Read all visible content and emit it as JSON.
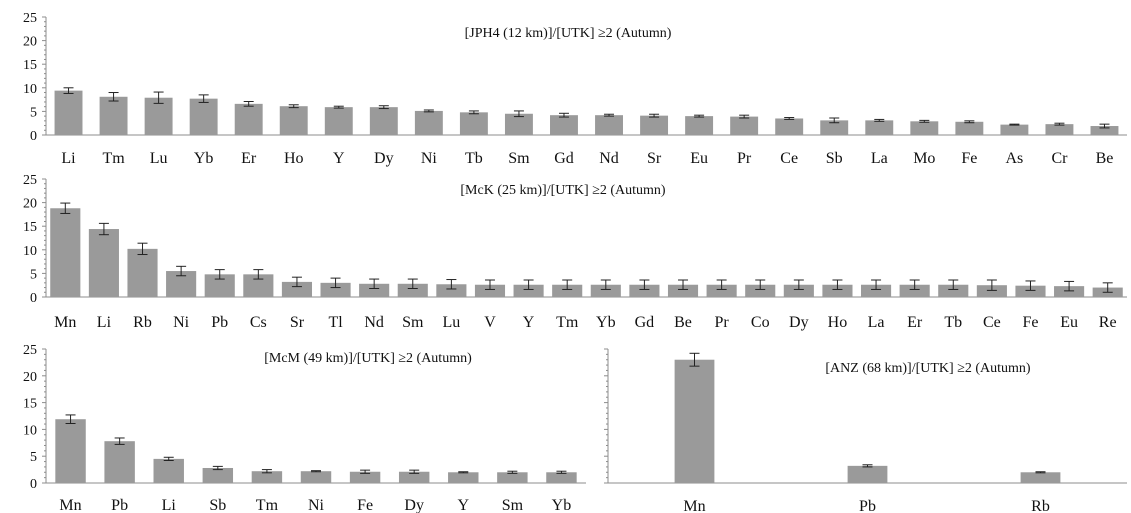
{
  "chart_data": [
    {
      "type": "bar",
      "title": "[JPH4 (12 km)]/[UTK] ≥2 (Autumn)",
      "ylim": [
        0,
        25
      ],
      "yticks": [
        0,
        5,
        10,
        15,
        20,
        25
      ],
      "grid": false,
      "categories": [
        "Li",
        "Tm",
        "Lu",
        "Yb",
        "Er",
        "Ho",
        "Y",
        "Dy",
        "Ni",
        "Tb",
        "Sm",
        "Gd",
        "Nd",
        "Sr",
        "Eu",
        "Pr",
        "Ce",
        "Sb",
        "La",
        "Mo",
        "Fe",
        "As",
        "Cr",
        "Be"
      ],
      "values": [
        9.4,
        8.1,
        7.9,
        7.7,
        6.6,
        6.1,
        5.9,
        5.9,
        5.1,
        4.8,
        4.5,
        4.2,
        4.2,
        4.1,
        4.0,
        3.9,
        3.5,
        3.1,
        3.1,
        2.9,
        2.8,
        2.2,
        2.3,
        1.9
      ],
      "errors": [
        0.6,
        0.9,
        1.2,
        0.8,
        0.5,
        0.3,
        0.2,
        0.3,
        0.2,
        0.3,
        0.6,
        0.4,
        0.2,
        0.3,
        0.2,
        0.3,
        0.2,
        0.5,
        0.2,
        0.2,
        0.2,
        0.1,
        0.2,
        0.4
      ]
    },
    {
      "type": "bar",
      "title": "[McK (25 km)]/[UTK] ≥2 (Autumn)",
      "ylim": [
        0,
        25
      ],
      "yticks": [
        0,
        5,
        10,
        15,
        20,
        25
      ],
      "grid": false,
      "categories": [
        "Mn",
        "Li",
        "Rb",
        "Ni",
        "Pb",
        "Cs",
        "Sr",
        "Tl",
        "Nd",
        "Sm",
        "Lu",
        "V",
        "Y",
        "Tm",
        "Yb",
        "Gd",
        "Be",
        "Pr",
        "Co",
        "Dy",
        "Ho",
        "La",
        "Er",
        "Tb",
        "Ce",
        "Fe",
        "Eu",
        "Re"
      ],
      "values": [
        18.8,
        14.4,
        10.2,
        5.5,
        4.8,
        4.8,
        3.2,
        3.0,
        2.8,
        2.8,
        2.7,
        2.6,
        2.6,
        2.6,
        2.6,
        2.6,
        2.6,
        2.6,
        2.6,
        2.6,
        2.6,
        2.6,
        2.6,
        2.6,
        2.5,
        2.4,
        2.3,
        2.0
      ],
      "errors": [
        1.1,
        1.2,
        1.2,
        1.0,
        1.0,
        1.0,
        1.0,
        1.0,
        1.0,
        1.0,
        1.0,
        1.0,
        1.0,
        1.0,
        1.0,
        1.0,
        1.0,
        1.0,
        1.0,
        1.0,
        1.0,
        1.0,
        1.0,
        1.0,
        1.1,
        1.0,
        1.0,
        1.0
      ]
    },
    {
      "type": "bar",
      "title": "[McM (49 km)]/[UTK] ≥2 (Autumn)",
      "ylim": [
        0,
        25
      ],
      "yticks": [
        0,
        5,
        10,
        15,
        20,
        25
      ],
      "grid": false,
      "categories": [
        "Mn",
        "Pb",
        "Li",
        "Sb",
        "Tm",
        "Ni",
        "Fe",
        "Dy",
        "Y",
        "Sm",
        "Yb"
      ],
      "values": [
        11.9,
        7.8,
        4.5,
        2.8,
        2.2,
        2.2,
        2.1,
        2.1,
        2.0,
        2.0,
        2.0
      ],
      "errors": [
        0.8,
        0.6,
        0.3,
        0.3,
        0.3,
        0.1,
        0.3,
        0.3,
        0.1,
        0.2,
        0.2
      ]
    },
    {
      "type": "bar",
      "title": "[ANZ (68 km)]/[UTK] ≥2 (Autumn)",
      "ylim": [
        0,
        25
      ],
      "yticks": [
        0,
        5,
        10,
        15,
        20,
        25
      ],
      "grid": false,
      "categories": [
        "Mn",
        "Pb",
        "Rb"
      ],
      "values": [
        23.0,
        3.2,
        2.0
      ],
      "errors": [
        1.2,
        0.2,
        0.1
      ]
    }
  ]
}
